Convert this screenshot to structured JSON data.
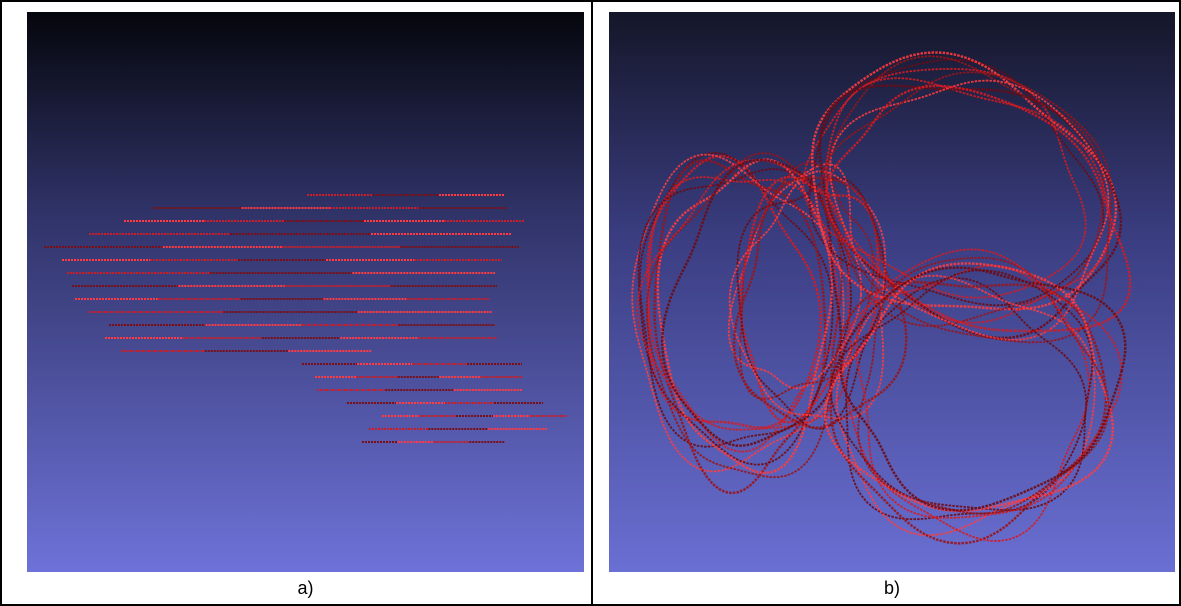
{
  "figure": {
    "panels": [
      {
        "caption": "a)",
        "content": "parallel-slice-contours-side-view",
        "background": {
          "top": "#05060c",
          "bottom": "#6e72d8"
        },
        "stroke_colors": [
          "#c81e2a",
          "#7a0f18",
          "#ff3a40"
        ]
      },
      {
        "caption": "b)",
        "content": "slice-contours-3d-view",
        "background": {
          "top": "#141629",
          "bottom": "#6a6fd3"
        },
        "stroke_colors": [
          "#d41c22",
          "#6e0a12",
          "#ff3c3e",
          "#9a1418"
        ]
      }
    ]
  }
}
